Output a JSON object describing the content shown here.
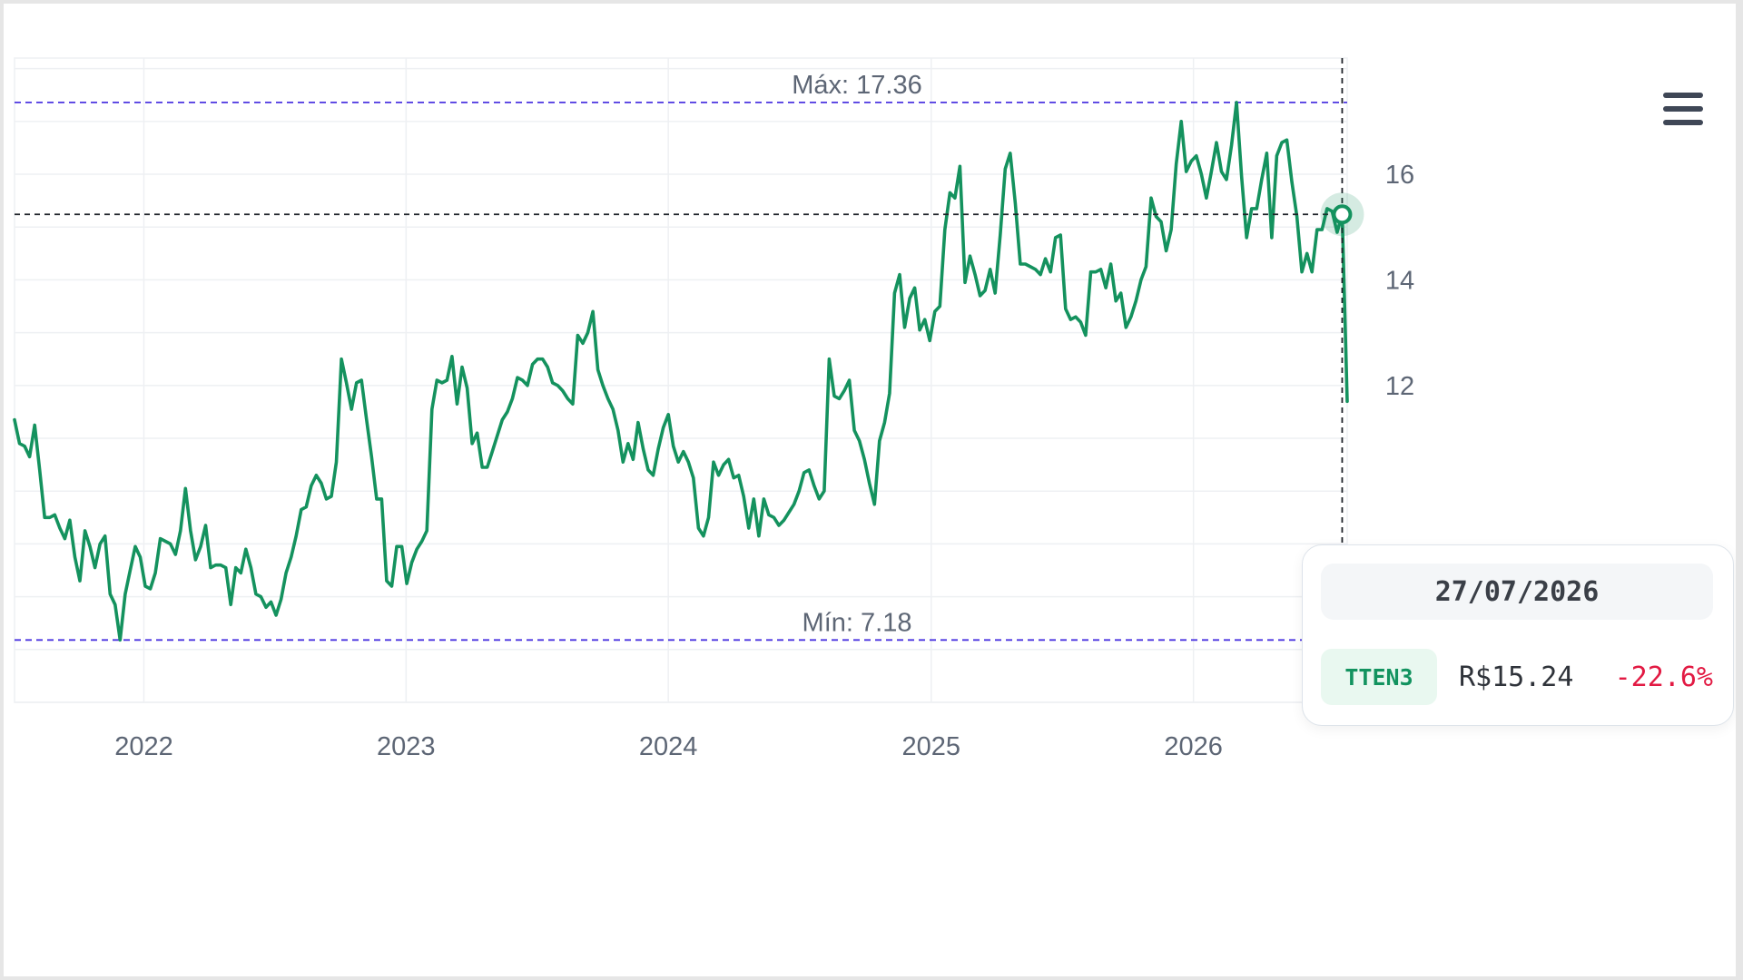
{
  "chart_data": {
    "type": "line",
    "x_type": "date",
    "xlim": [
      "2021-07-05",
      "2026-08-03"
    ],
    "ylim": [
      6,
      18.2
    ],
    "y_ticks": [
      12,
      14,
      16
    ],
    "x_ticks": [
      {
        "date": "2022-01-01",
        "label": "2022"
      },
      {
        "date": "2023-01-01",
        "label": "2023"
      },
      {
        "date": "2024-01-01",
        "label": "2024"
      },
      {
        "date": "2025-01-01",
        "label": "2025"
      },
      {
        "date": "2026-01-01",
        "label": "2026"
      }
    ],
    "grid": true,
    "reference_lines": [
      {
        "value": 17.36,
        "label": "Máx: 17.36",
        "color": "#4b35e0"
      },
      {
        "value": 7.18,
        "label": "Mín: 7.18",
        "color": "#4b35e0"
      }
    ],
    "crosshair": {
      "date": "2026-07-27",
      "value": 15.24
    },
    "series": [
      {
        "name": "TTEN3",
        "color": "#14925e",
        "points": [
          [
            "2021-07-05",
            11.35
          ],
          [
            "2021-07-12",
            10.9
          ],
          [
            "2021-07-19",
            10.85
          ],
          [
            "2021-07-26",
            10.65
          ],
          [
            "2021-08-02",
            11.25
          ],
          [
            "2021-08-09",
            10.4
          ],
          [
            "2021-08-16",
            9.5
          ],
          [
            "2021-08-23",
            9.5
          ],
          [
            "2021-08-30",
            9.55
          ],
          [
            "2021-09-06",
            9.3
          ],
          [
            "2021-09-13",
            9.1
          ],
          [
            "2021-09-20",
            9.45
          ],
          [
            "2021-09-27",
            8.75
          ],
          [
            "2021-10-04",
            8.3
          ],
          [
            "2021-10-11",
            9.25
          ],
          [
            "2021-10-18",
            8.95
          ],
          [
            "2021-10-25",
            8.55
          ],
          [
            "2021-11-01",
            9.0
          ],
          [
            "2021-11-08",
            9.15
          ],
          [
            "2021-11-15",
            8.05
          ],
          [
            "2021-11-22",
            7.85
          ],
          [
            "2021-11-29",
            7.18
          ],
          [
            "2021-12-06",
            8.05
          ],
          [
            "2021-12-13",
            8.5
          ],
          [
            "2021-12-20",
            8.95
          ],
          [
            "2021-12-27",
            8.75
          ],
          [
            "2022-01-03",
            8.2
          ],
          [
            "2022-01-10",
            8.15
          ],
          [
            "2022-01-17",
            8.45
          ],
          [
            "2022-01-24",
            9.1
          ],
          [
            "2022-01-31",
            9.05
          ],
          [
            "2022-02-07",
            9.0
          ],
          [
            "2022-02-14",
            8.8
          ],
          [
            "2022-02-21",
            9.25
          ],
          [
            "2022-02-28",
            10.05
          ],
          [
            "2022-03-07",
            9.25
          ],
          [
            "2022-03-14",
            8.7
          ],
          [
            "2022-03-21",
            8.95
          ],
          [
            "2022-03-28",
            9.35
          ],
          [
            "2022-04-04",
            8.55
          ],
          [
            "2022-04-11",
            8.6
          ],
          [
            "2022-04-18",
            8.6
          ],
          [
            "2022-04-25",
            8.55
          ],
          [
            "2022-05-02",
            7.85
          ],
          [
            "2022-05-09",
            8.55
          ],
          [
            "2022-05-16",
            8.45
          ],
          [
            "2022-05-23",
            8.9
          ],
          [
            "2022-05-30",
            8.55
          ],
          [
            "2022-06-06",
            8.05
          ],
          [
            "2022-06-13",
            8.0
          ],
          [
            "2022-06-20",
            7.8
          ],
          [
            "2022-06-27",
            7.9
          ],
          [
            "2022-07-04",
            7.65
          ],
          [
            "2022-07-11",
            7.95
          ],
          [
            "2022-07-18",
            8.45
          ],
          [
            "2022-07-25",
            8.75
          ],
          [
            "2022-08-01",
            9.15
          ],
          [
            "2022-08-08",
            9.65
          ],
          [
            "2022-08-15",
            9.7
          ],
          [
            "2022-08-22",
            10.1
          ],
          [
            "2022-08-29",
            10.3
          ],
          [
            "2022-09-05",
            10.15
          ],
          [
            "2022-09-12",
            9.85
          ],
          [
            "2022-09-19",
            9.9
          ],
          [
            "2022-09-26",
            10.55
          ],
          [
            "2022-10-03",
            12.5
          ],
          [
            "2022-10-10",
            12.05
          ],
          [
            "2022-10-17",
            11.55
          ],
          [
            "2022-10-24",
            12.05
          ],
          [
            "2022-10-31",
            12.1
          ],
          [
            "2022-11-07",
            11.35
          ],
          [
            "2022-11-14",
            10.65
          ],
          [
            "2022-11-21",
            9.85
          ],
          [
            "2022-11-28",
            9.85
          ],
          [
            "2022-12-05",
            8.3
          ],
          [
            "2022-12-12",
            8.2
          ],
          [
            "2022-12-19",
            8.95
          ],
          [
            "2022-12-26",
            8.95
          ],
          [
            "2023-01-02",
            8.25
          ],
          [
            "2023-01-09",
            8.65
          ],
          [
            "2023-01-16",
            8.9
          ],
          [
            "2023-01-23",
            9.05
          ],
          [
            "2023-01-30",
            9.25
          ],
          [
            "2023-02-06",
            11.55
          ],
          [
            "2023-02-13",
            12.1
          ],
          [
            "2023-02-20",
            12.05
          ],
          [
            "2023-02-27",
            12.1
          ],
          [
            "2023-03-06",
            12.55
          ],
          [
            "2023-03-13",
            11.65
          ],
          [
            "2023-03-20",
            12.35
          ],
          [
            "2023-03-27",
            11.95
          ],
          [
            "2023-04-03",
            10.9
          ],
          [
            "2023-04-10",
            11.1
          ],
          [
            "2023-04-17",
            10.45
          ],
          [
            "2023-04-24",
            10.45
          ],
          [
            "2023-05-01",
            10.75
          ],
          [
            "2023-05-08",
            11.05
          ],
          [
            "2023-05-15",
            11.35
          ],
          [
            "2023-05-22",
            11.5
          ],
          [
            "2023-05-29",
            11.75
          ],
          [
            "2023-06-05",
            12.15
          ],
          [
            "2023-06-12",
            12.1
          ],
          [
            "2023-06-19",
            12.0
          ],
          [
            "2023-06-26",
            12.4
          ],
          [
            "2023-07-03",
            12.5
          ],
          [
            "2023-07-10",
            12.5
          ],
          [
            "2023-07-17",
            12.35
          ],
          [
            "2023-07-24",
            12.05
          ],
          [
            "2023-07-31",
            12.0
          ],
          [
            "2023-08-07",
            11.9
          ],
          [
            "2023-08-14",
            11.75
          ],
          [
            "2023-08-21",
            11.65
          ],
          [
            "2023-08-28",
            12.95
          ],
          [
            "2023-09-04",
            12.8
          ],
          [
            "2023-09-11",
            13.0
          ],
          [
            "2023-09-18",
            13.4
          ],
          [
            "2023-09-25",
            12.3
          ],
          [
            "2023-10-02",
            12.0
          ],
          [
            "2023-10-09",
            11.75
          ],
          [
            "2023-10-16",
            11.55
          ],
          [
            "2023-10-23",
            11.15
          ],
          [
            "2023-10-30",
            10.55
          ],
          [
            "2023-11-06",
            10.9
          ],
          [
            "2023-11-13",
            10.6
          ],
          [
            "2023-11-20",
            11.3
          ],
          [
            "2023-11-27",
            10.8
          ],
          [
            "2023-12-04",
            10.4
          ],
          [
            "2023-12-11",
            10.3
          ],
          [
            "2023-12-18",
            10.8
          ],
          [
            "2023-12-25",
            11.2
          ],
          [
            "2024-01-01",
            11.45
          ],
          [
            "2024-01-08",
            10.85
          ],
          [
            "2024-01-15",
            10.55
          ],
          [
            "2024-01-22",
            10.75
          ],
          [
            "2024-01-29",
            10.55
          ],
          [
            "2024-02-05",
            10.25
          ],
          [
            "2024-02-12",
            9.3
          ],
          [
            "2024-02-19",
            9.15
          ],
          [
            "2024-02-26",
            9.5
          ],
          [
            "2024-03-04",
            10.55
          ],
          [
            "2024-03-11",
            10.3
          ],
          [
            "2024-03-18",
            10.5
          ],
          [
            "2024-03-25",
            10.6
          ],
          [
            "2024-04-01",
            10.25
          ],
          [
            "2024-04-08",
            10.3
          ],
          [
            "2024-04-15",
            9.9
          ],
          [
            "2024-04-22",
            9.3
          ],
          [
            "2024-04-29",
            9.85
          ],
          [
            "2024-05-06",
            9.15
          ],
          [
            "2024-05-13",
            9.85
          ],
          [
            "2024-05-20",
            9.55
          ],
          [
            "2024-05-27",
            9.5
          ],
          [
            "2024-06-03",
            9.35
          ],
          [
            "2024-06-10",
            9.45
          ],
          [
            "2024-06-17",
            9.6
          ],
          [
            "2024-06-24",
            9.75
          ],
          [
            "2024-07-01",
            10.0
          ],
          [
            "2024-07-08",
            10.35
          ],
          [
            "2024-07-15",
            10.4
          ],
          [
            "2024-07-22",
            10.1
          ],
          [
            "2024-07-29",
            9.85
          ],
          [
            "2024-08-05",
            10.0
          ],
          [
            "2024-08-12",
            12.5
          ],
          [
            "2024-08-19",
            11.8
          ],
          [
            "2024-08-26",
            11.75
          ],
          [
            "2024-09-02",
            11.9
          ],
          [
            "2024-09-09",
            12.1
          ],
          [
            "2024-09-16",
            11.15
          ],
          [
            "2024-09-23",
            10.95
          ],
          [
            "2024-09-30",
            10.6
          ],
          [
            "2024-10-07",
            10.15
          ],
          [
            "2024-10-14",
            9.75
          ],
          [
            "2024-10-21",
            10.95
          ],
          [
            "2024-10-28",
            11.3
          ],
          [
            "2024-11-04",
            11.85
          ],
          [
            "2024-11-11",
            13.75
          ],
          [
            "2024-11-18",
            14.1
          ],
          [
            "2024-11-25",
            13.1
          ],
          [
            "2024-12-02",
            13.65
          ],
          [
            "2024-12-09",
            13.85
          ],
          [
            "2024-12-16",
            13.05
          ],
          [
            "2024-12-23",
            13.25
          ],
          [
            "2024-12-30",
            12.85
          ],
          [
            "2025-01-06",
            13.4
          ],
          [
            "2025-01-13",
            13.5
          ],
          [
            "2025-01-20",
            14.95
          ],
          [
            "2025-01-27",
            15.65
          ],
          [
            "2025-02-03",
            15.55
          ],
          [
            "2025-02-10",
            16.15
          ],
          [
            "2025-02-17",
            13.95
          ],
          [
            "2025-02-24",
            14.45
          ],
          [
            "2025-03-03",
            14.1
          ],
          [
            "2025-03-10",
            13.7
          ],
          [
            "2025-03-17",
            13.8
          ],
          [
            "2025-03-24",
            14.2
          ],
          [
            "2025-03-31",
            13.75
          ],
          [
            "2025-04-07",
            14.85
          ],
          [
            "2025-04-14",
            16.1
          ],
          [
            "2025-04-21",
            16.4
          ],
          [
            "2025-04-28",
            15.45
          ],
          [
            "2025-05-05",
            14.3
          ],
          [
            "2025-05-12",
            14.3
          ],
          [
            "2025-05-19",
            14.25
          ],
          [
            "2025-05-26",
            14.2
          ],
          [
            "2025-06-02",
            14.1
          ],
          [
            "2025-06-09",
            14.4
          ],
          [
            "2025-06-16",
            14.15
          ],
          [
            "2025-06-23",
            14.8
          ],
          [
            "2025-06-30",
            14.85
          ],
          [
            "2025-07-07",
            13.45
          ],
          [
            "2025-07-14",
            13.25
          ],
          [
            "2025-07-21",
            13.3
          ],
          [
            "2025-07-28",
            13.2
          ],
          [
            "2025-08-04",
            12.95
          ],
          [
            "2025-08-11",
            14.15
          ],
          [
            "2025-08-18",
            14.15
          ],
          [
            "2025-08-25",
            14.2
          ],
          [
            "2025-09-01",
            13.85
          ],
          [
            "2025-09-08",
            14.3
          ],
          [
            "2025-09-15",
            13.6
          ],
          [
            "2025-09-22",
            13.75
          ],
          [
            "2025-09-29",
            13.1
          ],
          [
            "2025-10-06",
            13.3
          ],
          [
            "2025-10-13",
            13.6
          ],
          [
            "2025-10-20",
            14.0
          ],
          [
            "2025-10-27",
            14.25
          ],
          [
            "2025-11-03",
            15.55
          ],
          [
            "2025-11-10",
            15.2
          ],
          [
            "2025-11-17",
            15.1
          ],
          [
            "2025-11-24",
            14.55
          ],
          [
            "2025-12-01",
            14.95
          ],
          [
            "2025-12-08",
            16.2
          ],
          [
            "2025-12-15",
            17.0
          ],
          [
            "2025-12-22",
            16.05
          ],
          [
            "2025-12-29",
            16.25
          ],
          [
            "2026-01-05",
            16.35
          ],
          [
            "2026-01-12",
            16.0
          ],
          [
            "2026-01-19",
            15.55
          ],
          [
            "2026-01-26",
            16.05
          ],
          [
            "2026-02-02",
            16.6
          ],
          [
            "2026-02-09",
            16.05
          ],
          [
            "2026-02-16",
            15.9
          ],
          [
            "2026-02-23",
            16.55
          ],
          [
            "2026-03-02",
            17.36
          ],
          [
            "2026-03-09",
            15.95
          ],
          [
            "2026-03-16",
            14.8
          ],
          [
            "2026-03-23",
            15.35
          ],
          [
            "2026-03-30",
            15.35
          ],
          [
            "2026-04-06",
            15.9
          ],
          [
            "2026-04-13",
            16.4
          ],
          [
            "2026-04-20",
            14.8
          ],
          [
            "2026-04-27",
            16.35
          ],
          [
            "2026-05-04",
            16.6
          ],
          [
            "2026-05-11",
            16.65
          ],
          [
            "2026-05-18",
            15.85
          ],
          [
            "2026-05-25",
            15.2
          ],
          [
            "2026-06-01",
            14.15
          ],
          [
            "2026-06-08",
            14.5
          ],
          [
            "2026-06-15",
            14.15
          ],
          [
            "2026-06-22",
            14.95
          ],
          [
            "2026-06-29",
            14.95
          ],
          [
            "2026-07-06",
            15.35
          ],
          [
            "2026-07-13",
            15.3
          ],
          [
            "2026-07-20",
            14.9
          ],
          [
            "2026-07-27",
            15.24
          ],
          [
            "2026-08-03",
            11.7
          ]
        ]
      }
    ]
  },
  "tooltip": {
    "date": "27/07/2026",
    "ticker": "TTEN3",
    "price": "R$15.24",
    "change": "-22.6%"
  },
  "menu_icon": "hamburger-menu-icon"
}
